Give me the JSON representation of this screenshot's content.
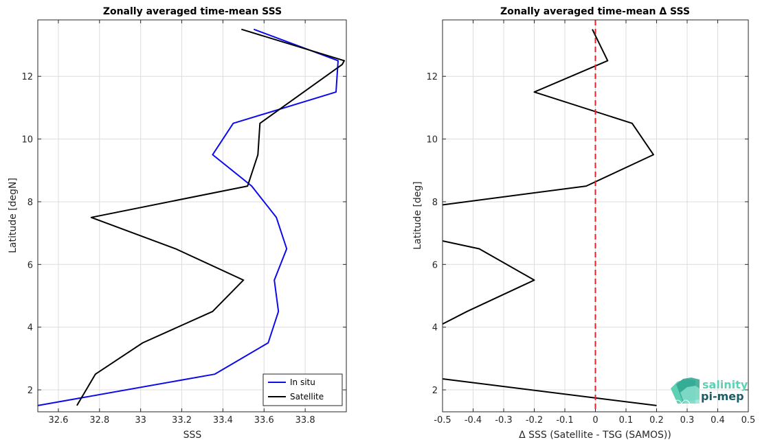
{
  "colors": {
    "in_situ": "#0a0aeb",
    "satellite": "#000000",
    "zero_line": "#e8202a",
    "logo_light": "#5ed0b3",
    "logo_dark": "#1c5c66"
  },
  "logo": {
    "line1": "salinity",
    "line2": "pi-mep"
  },
  "chart_data": [
    {
      "type": "line",
      "title": "Zonally averaged time-mean SSS",
      "xlabel": "SSS",
      "ylabel": "Latitude [degN]",
      "xlim": [
        32.5,
        34.0
      ],
      "ylim": [
        1.3,
        13.8
      ],
      "xticks": [
        32.6,
        32.8,
        33.0,
        33.2,
        33.4,
        33.6,
        33.8
      ],
      "xtick_labels": [
        "32.6",
        "32.8",
        "33",
        "33.2",
        "33.4",
        "33.6",
        "33.8"
      ],
      "yticks": [
        2,
        4,
        6,
        8,
        10,
        12
      ],
      "ytick_labels": [
        "2",
        "4",
        "6",
        "8",
        "10",
        "12"
      ],
      "grid": true,
      "legend": "bottom-right",
      "series": [
        {
          "name": "In situ",
          "color": "#0a0aeb",
          "x": [
            32.5,
            33.36,
            33.62,
            33.67,
            33.65,
            33.71,
            33.66,
            33.54,
            33.35,
            33.45,
            33.95,
            33.96,
            33.55
          ],
          "y": [
            1.5,
            2.5,
            3.5,
            4.5,
            5.5,
            6.5,
            7.5,
            8.5,
            9.5,
            10.5,
            11.5,
            12.5,
            13.5
          ]
        },
        {
          "name": "Satellite",
          "color": "#000000",
          "x": [
            32.69,
            32.78,
            33.01,
            33.35,
            33.5,
            33.17,
            32.76,
            33.52,
            33.57,
            33.58,
            33.98,
            33.99,
            33.49
          ],
          "y": [
            1.5,
            2.5,
            3.5,
            4.5,
            5.5,
            6.5,
            7.5,
            8.5,
            9.5,
            10.5,
            12.38,
            12.5,
            13.5
          ]
        }
      ]
    },
    {
      "type": "line",
      "title": "Zonally averaged time-mean Δ SSS",
      "xlabel": "Δ SSS (Satellite - TSG (SAMOS))",
      "ylabel": "Latitude [deg]",
      "xlim": [
        -0.5,
        0.5
      ],
      "ylim": [
        1.3,
        13.8
      ],
      "xticks": [
        -0.5,
        -0.4,
        -0.3,
        -0.2,
        -0.1,
        0,
        0.1,
        0.2,
        0.3,
        0.4,
        0.5
      ],
      "xtick_labels": [
        "-0.5",
        "-0.4",
        "-0.3",
        "-0.2",
        "-0.1",
        "0",
        "0.1",
        "0.2",
        "0.3",
        "0.4",
        "0.5"
      ],
      "yticks": [
        2,
        4,
        6,
        8,
        10,
        12
      ],
      "ytick_labels": [
        "2",
        "4",
        "6",
        "8",
        "10",
        "12"
      ],
      "grid": true,
      "zero_line": {
        "x": 0,
        "style": "dashed",
        "color": "#e8202a"
      },
      "series": [
        {
          "color": "#000000",
          "segments": [
            {
              "x": [
                -0.5,
                0.2
              ],
              "y": [
                2.35,
                1.5
              ]
            },
            {
              "x": [
                -0.5,
                -0.42,
                -0.2,
                -0.38,
                -0.5
              ],
              "y": [
                4.1,
                4.5,
                5.5,
                6.5,
                6.75
              ]
            },
            {
              "x": [
                -0.5,
                -0.03,
                0.19,
                0.12,
                -0.2,
                0.04,
                -0.01
              ],
              "y": [
                7.9,
                8.5,
                9.5,
                10.5,
                11.5,
                12.5,
                13.5
              ]
            }
          ]
        }
      ]
    }
  ]
}
